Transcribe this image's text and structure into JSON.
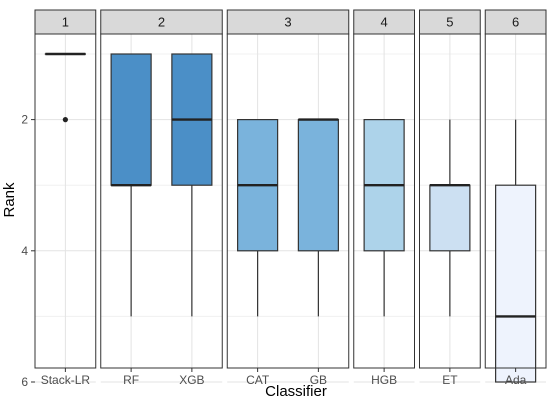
{
  "chart_data": {
    "type": "boxplot",
    "title": "",
    "xlabel": "Classifier",
    "ylabel": "Rank",
    "y_reversed": true,
    "ylim": [
      6.2,
      0.8
    ],
    "y_ticks": [
      2,
      4,
      6
    ],
    "grid": true,
    "facets": [
      {
        "label": "1",
        "classifiers": [
          {
            "name": "Stack-LR",
            "min": 1,
            "q1": 1,
            "median": 1,
            "q3": 1,
            "max": 1,
            "outliers": [
              2
            ],
            "fill": "#ffffff"
          }
        ]
      },
      {
        "label": "2",
        "classifiers": [
          {
            "name": "RF",
            "min": 1,
            "q1": 1,
            "median": 3,
            "q3": 3,
            "max": 5,
            "outliers": [],
            "fill": "#4b8fc7"
          },
          {
            "name": "XGB",
            "min": 1,
            "q1": 1,
            "median": 2,
            "q3": 3,
            "max": 5,
            "outliers": [],
            "fill": "#4b8fc7"
          }
        ]
      },
      {
        "label": "3",
        "classifiers": [
          {
            "name": "CAT",
            "min": 2,
            "q1": 2,
            "median": 3,
            "q3": 4,
            "max": 5,
            "outliers": [],
            "fill": "#7ab3dc"
          },
          {
            "name": "GB",
            "min": 2,
            "q1": 2,
            "median": 2,
            "q3": 4,
            "max": 5,
            "outliers": [],
            "fill": "#7ab3dc"
          }
        ]
      },
      {
        "label": "4",
        "classifiers": [
          {
            "name": "HGB",
            "min": 2,
            "q1": 2,
            "median": 3,
            "q3": 4,
            "max": 5,
            "outliers": [],
            "fill": "#add3ea"
          }
        ]
      },
      {
        "label": "5",
        "classifiers": [
          {
            "name": "ET",
            "min": 2,
            "q1": 3,
            "median": 3,
            "q3": 4,
            "max": 5,
            "outliers": [],
            "fill": "#cce0f2"
          }
        ]
      },
      {
        "label": "6",
        "classifiers": [
          {
            "name": "Ada",
            "min": 2,
            "q1": 3,
            "median": 5,
            "q3": 6,
            "max": 6,
            "outliers": [],
            "fill": "#eef3fd"
          }
        ]
      }
    ]
  }
}
